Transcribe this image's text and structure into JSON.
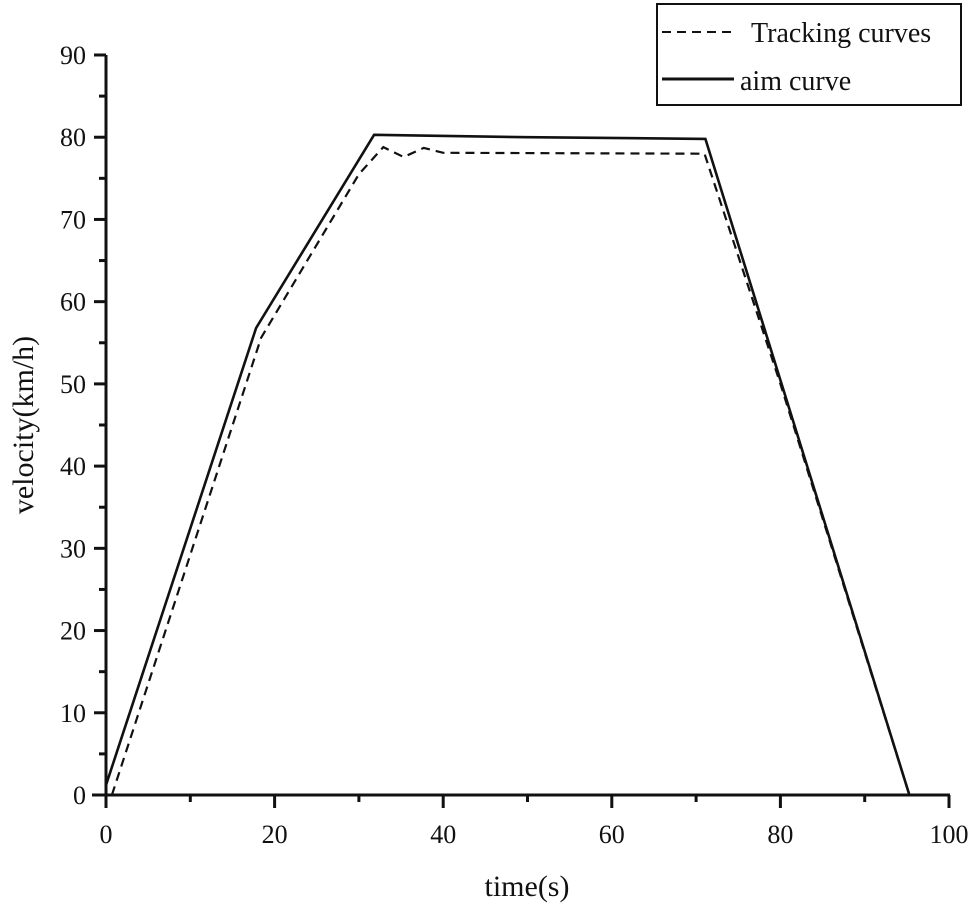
{
  "chart_data": {
    "type": "line",
    "title": "",
    "xlabel": "time(s)",
    "ylabel": "velocity(km/h)",
    "xlim": [
      0,
      100
    ],
    "ylim": [
      0,
      90
    ],
    "x_ticks": [
      0,
      20,
      40,
      60,
      80,
      100
    ],
    "y_ticks": [
      0,
      10,
      20,
      30,
      40,
      50,
      60,
      70,
      80,
      90
    ],
    "x_minor_step": 10,
    "y_minor_step": 5,
    "grid": false,
    "legend_position": "top-right",
    "series": [
      {
        "name": "Tracking curves",
        "style": "dashed",
        "color": "#111111",
        "points": [
          [
            0.7,
            0
          ],
          [
            18.4,
            55.6
          ],
          [
            30.0,
            75.5
          ],
          [
            32.9,
            78.8
          ],
          [
            35.3,
            77.6
          ],
          [
            37.7,
            78.7
          ],
          [
            40.0,
            78.1
          ],
          [
            71.0,
            78.0
          ],
          [
            80.0,
            50.0
          ],
          [
            95.3,
            0
          ]
        ]
      },
      {
        "name": "aim curve",
        "style": "solid",
        "color": "#111111",
        "points": [
          [
            0,
            1.2
          ],
          [
            17.8,
            56.8
          ],
          [
            31.8,
            80.3
          ],
          [
            50.0,
            80.0
          ],
          [
            71.1,
            79.8
          ],
          [
            95.3,
            0
          ]
        ]
      }
    ]
  },
  "legend": {
    "items": [
      "Tracking curves",
      "aim curve"
    ]
  }
}
